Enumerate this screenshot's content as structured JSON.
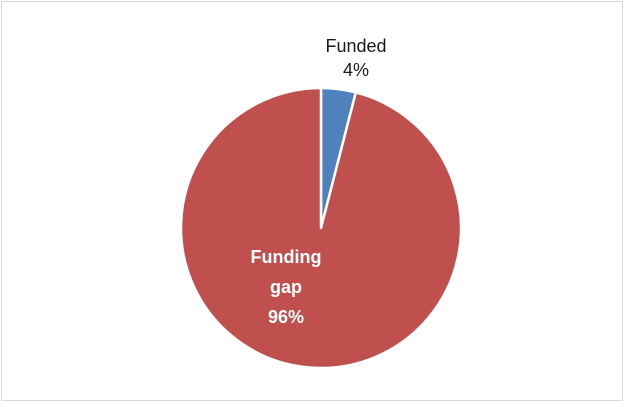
{
  "chart_data": {
    "type": "pie",
    "title": "",
    "legend": "none",
    "slices": [
      {
        "name": "Funded",
        "value": 4,
        "label_lines": [
          "Funded",
          "4%"
        ],
        "color": "#4f81bd",
        "label_position": "outside"
      },
      {
        "name": "Funding gap",
        "value": 96,
        "label_lines": [
          "Funding",
          "gap",
          "96%"
        ],
        "color": "#c0504d",
        "label_position": "inside"
      }
    ],
    "start_angle_deg": 0,
    "direction": "clockwise",
    "slice_border_color": "#ffffff"
  }
}
